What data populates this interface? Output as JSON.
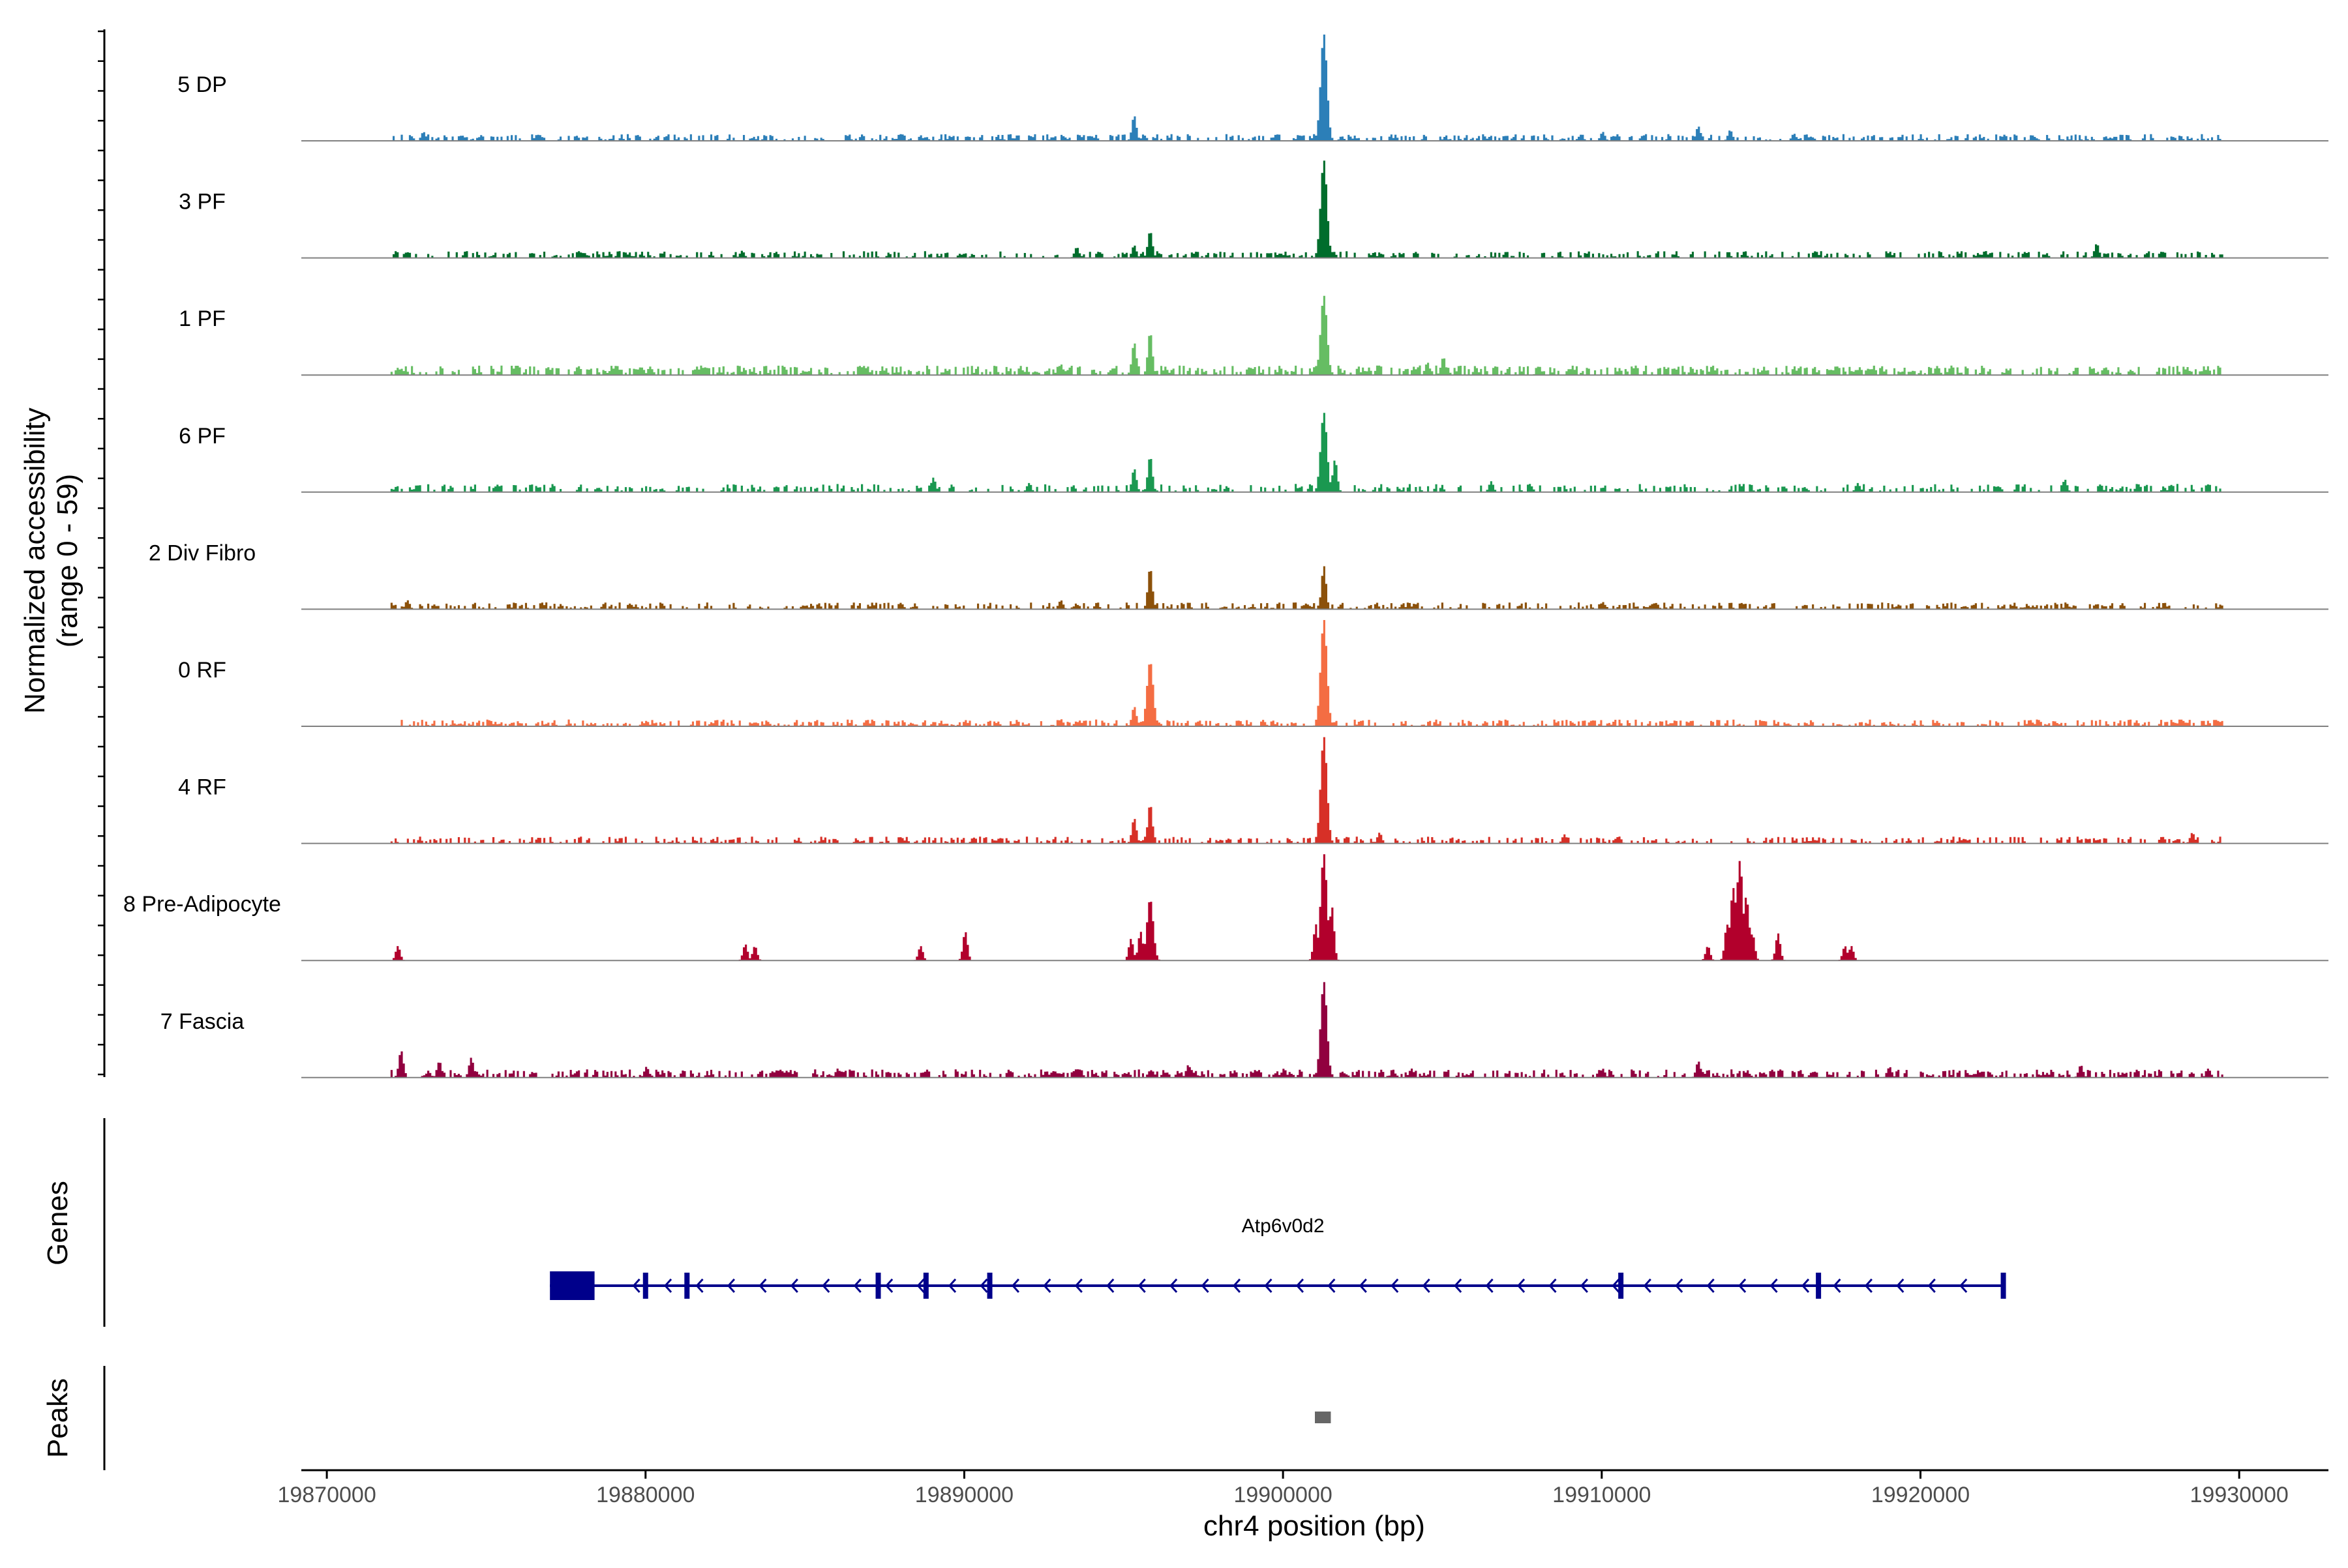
{
  "chart_data": {
    "type": "area",
    "title": "",
    "ylabel_line1": "Normalized accessibility",
    "ylabel_line2": "(range 0 - 59)",
    "ylim": [
      0,
      59
    ],
    "xlabel": "chr4 position (bp)",
    "xlim": [
      19869200,
      19932800
    ],
    "x_ticks": [
      19870000,
      19880000,
      19890000,
      19900000,
      19910000,
      19920000,
      19930000
    ],
    "x_tick_labels": [
      "19870000",
      "19880000",
      "19890000",
      "19900000",
      "19910000",
      "19920000",
      "19930000"
    ],
    "grid": false,
    "tracks": [
      {
        "name": "5 DP",
        "color": "#2c7fb8",
        "range": [
          19872000,
          19929500
        ],
        "base": 2.5,
        "density": 0.5,
        "peaks": [
          [
            19901250,
            59
          ],
          [
            19895300,
            14
          ],
          [
            19888000,
            4
          ],
          [
            19910000,
            5
          ],
          [
            19913000,
            8
          ],
          [
            19914000,
            6
          ],
          [
            19916000,
            4
          ],
          [
            19923500,
            3
          ],
          [
            19873000,
            5
          ]
        ]
      },
      {
        "name": "3 PF",
        "color": "#006d2c",
        "range": [
          19872000,
          19929500
        ],
        "base": 2.5,
        "density": 0.45,
        "peaks": [
          [
            19901250,
            54
          ],
          [
            19895800,
            15
          ],
          [
            19895300,
            7
          ],
          [
            19893500,
            6
          ],
          [
            19925500,
            8
          ],
          [
            19922000,
            4
          ],
          [
            19883000,
            4
          ]
        ]
      },
      {
        "name": "1 PF",
        "color": "#66bd63",
        "range": [
          19872000,
          19929500
        ],
        "base": 3.5,
        "density": 0.6,
        "peaks": [
          [
            19901250,
            44
          ],
          [
            19895800,
            24
          ],
          [
            19895300,
            18
          ],
          [
            19905000,
            10
          ],
          [
            19904500,
            7
          ],
          [
            19908000,
            5
          ],
          [
            19893000,
            6
          ],
          [
            19920500,
            5
          ]
        ]
      },
      {
        "name": "6 PF",
        "color": "#1a9850",
        "range": [
          19872000,
          19929500
        ],
        "base": 3,
        "density": 0.4,
        "peaks": [
          [
            19901250,
            44
          ],
          [
            19901600,
            18
          ],
          [
            19895800,
            20
          ],
          [
            19895300,
            13
          ],
          [
            19889000,
            8
          ],
          [
            19892000,
            5
          ],
          [
            19906500,
            6
          ],
          [
            19924500,
            7
          ],
          [
            19918000,
            5
          ],
          [
            19872800,
            4
          ]
        ]
      },
      {
        "name": "2 Div Fibro",
        "color": "#8c510a",
        "range": [
          19872000,
          19929500
        ],
        "base": 2.5,
        "density": 0.45,
        "peaks": [
          [
            19901250,
            24
          ],
          [
            19895800,
            23
          ],
          [
            19893000,
            5
          ],
          [
            19888000,
            3
          ],
          [
            19910000,
            4
          ],
          [
            19872500,
            5
          ]
        ]
      },
      {
        "name": "0 RF",
        "color": "#f46d43",
        "range": [
          19872000,
          19929500
        ],
        "base": 2.5,
        "density": 0.55,
        "peaks": [
          [
            19901250,
            59
          ],
          [
            19895800,
            36
          ],
          [
            19895300,
            11
          ],
          [
            19893000,
            4
          ],
          [
            19880000,
            3
          ],
          [
            19915000,
            3
          ]
        ]
      },
      {
        "name": "4 RF",
        "color": "#d73027",
        "range": [
          19872000,
          19929500
        ],
        "base": 2.5,
        "density": 0.45,
        "peaks": [
          [
            19901250,
            59
          ],
          [
            19895800,
            22
          ],
          [
            19895300,
            14
          ],
          [
            19903000,
            6
          ],
          [
            19908800,
            5
          ],
          [
            19910500,
            4
          ],
          [
            19928500,
            6
          ]
        ]
      },
      {
        "name": "8 Pre-Adipocyte",
        "color": "#b2002c",
        "range": [
          19872000,
          19929500
        ],
        "base": 0,
        "density": 0,
        "peaks": [
          [
            19901250,
            59
          ],
          [
            19901500,
            30
          ],
          [
            19901000,
            20
          ],
          [
            19914300,
            55
          ],
          [
            19914100,
            40
          ],
          [
            19914500,
            35
          ],
          [
            19913900,
            20
          ],
          [
            19914700,
            15
          ],
          [
            19915500,
            15
          ],
          [
            19913300,
            8
          ],
          [
            19895800,
            34
          ],
          [
            19895500,
            16
          ],
          [
            19895200,
            12
          ],
          [
            19890000,
            16
          ],
          [
            19888600,
            8
          ],
          [
            19872200,
            8
          ],
          [
            19883100,
            9
          ],
          [
            19883400,
            8
          ],
          [
            19917600,
            8
          ],
          [
            19917800,
            8
          ]
        ]
      },
      {
        "name": "7 Fascia",
        "color": "#91003f",
        "range": [
          19872000,
          19929500
        ],
        "base": 3,
        "density": 0.55,
        "peaks": [
          [
            19901250,
            53
          ],
          [
            19872300,
            15
          ],
          [
            19873500,
            9
          ],
          [
            19874500,
            11
          ],
          [
            19880000,
            6
          ],
          [
            19886000,
            5
          ],
          [
            19893500,
            5
          ],
          [
            19897000,
            7
          ],
          [
            19900000,
            5
          ],
          [
            19904000,
            5
          ],
          [
            19910000,
            5
          ],
          [
            19913000,
            9
          ],
          [
            19919000,
            6
          ],
          [
            19925000,
            7
          ],
          [
            19929000,
            5
          ]
        ]
      }
    ],
    "genes_panel_label": "Genes",
    "gene": {
      "name": "Atp6v0d2",
      "strand": "-",
      "start": 19877000,
      "end": 19922600,
      "utr": [
        19877000,
        19878400
      ],
      "exons": [
        19877000,
        19880000,
        19881300,
        19887300,
        19888800,
        19890800,
        19910600,
        19916800,
        19922600
      ]
    },
    "peaks_panel_label": "Peaks",
    "peaks_regions": [
      [
        19901000,
        19901500
      ]
    ],
    "colors": {
      "gene": "#00008b",
      "peak": "#666666",
      "baseline": "#808080",
      "axis": "#000000"
    }
  }
}
